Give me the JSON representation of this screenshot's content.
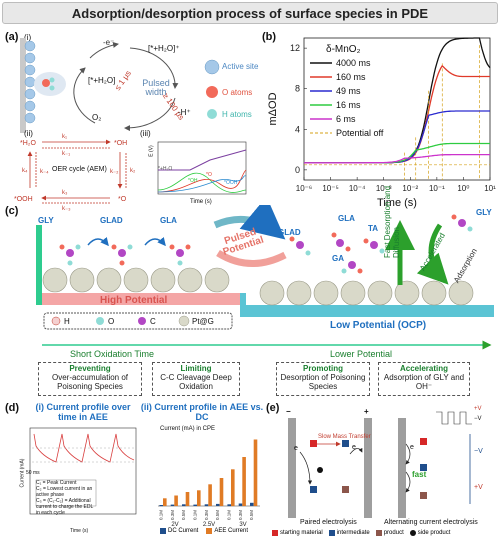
{
  "title": "Adsorption/desorption process of surface species in PDE",
  "panel_a": {
    "label": "(a)",
    "i_label": "(i)",
    "ii_label": "(ii)",
    "iii_label": "(iii)",
    "pulsed_width": "Pulsed width",
    "le1": "≤ 1 μs",
    "ge100": "≥ 100 μs",
    "h2o_top": "[*+H₂O]⁺",
    "h2o_left": "[*+H₂O]",
    "e_minus": "-e⁻",
    "h_minus": "-H⁺",
    "o2": "O₂",
    "legend": [
      "Active site",
      "O atoms",
      "H atoms"
    ],
    "oer": "OER cycle (AEM)",
    "cycle_nodes": [
      "*H₂O",
      "*OH",
      "*OOH",
      "*O"
    ],
    "k_labels": [
      "k₁",
      "k₋₁",
      "k₂",
      "k₋₂",
      "k₃",
      "k₋₃",
      "k₄",
      "k₋₄"
    ],
    "iii_ylabel": "E (V)",
    "iii_xlabel": "Time (s)",
    "iii_species": [
      "*+H₂O",
      "*OH",
      "*O",
      "*OOH"
    ]
  },
  "panel_b": {
    "label": "(b)",
    "chart_data": {
      "type": "line",
      "title": "δ-MnO₂",
      "xlabel": "Time (s)",
      "ylabel": "mΔOD",
      "xscale": "log",
      "xlim": [
        1e-06,
        10
      ],
      "ylim": [
        -1,
        13
      ],
      "yticks": [
        0,
        4,
        8,
        12
      ],
      "xticks": [
        "10⁻⁶",
        "10⁻⁵",
        "10⁻⁴",
        "10⁻³",
        "10⁻²",
        "10⁻¹",
        "10⁰",
        "10¹"
      ],
      "series": [
        {
          "name": "4000 ms",
          "color": "#111111",
          "rise": 0.05,
          "peak": 12.3,
          "off": 4.0,
          "final": 9.8
        },
        {
          "name": "160 ms",
          "color": "#e03a2a",
          "rise": 0.05,
          "peak": 10.5,
          "off": 0.16,
          "final": 9.2
        },
        {
          "name": "49 ms",
          "color": "#2a2acf",
          "rise": 0.04,
          "peak": 7.8,
          "off": 0.049,
          "final": 5.8
        },
        {
          "name": "16 ms",
          "color": "#2ecc40",
          "rise": 0.02,
          "peak": 3.2,
          "off": 0.016,
          "final": 2.6
        },
        {
          "name": "6 ms",
          "color": "#cc33cc",
          "rise": 0.01,
          "peak": 1.7,
          "off": 0.006,
          "final": 1.5
        }
      ],
      "potential_off_label": "Potential off",
      "legend_position": "top-left"
    }
  },
  "panel_c": {
    "label": "(c)",
    "molecules_left": [
      "GLY",
      "GLAD",
      "GLA"
    ],
    "molecules_right": [
      "GLAD",
      "GLA",
      "TA",
      "GA",
      "GLY"
    ],
    "pulsed_potential": "Pulsed Potential",
    "fast_desorption": "Fast Desorption and Diffusion",
    "accelerated": "Accelerated",
    "adsorption": "Adsorption",
    "high_potential": "High Potential",
    "low_potential": "Low Potential (OCP)",
    "element_legend": [
      "H",
      "O",
      "C",
      "Pt@G"
    ],
    "short_ox": "Short Oxidation Time",
    "lower_pot": "Lower Potential",
    "boxes": [
      {
        "head": "Preventing",
        "body": "Over-accumulation of Poisoning Species"
      },
      {
        "head": "Limiting",
        "body": "C-C Cleavage Deep Oxidation"
      },
      {
        "head": "Promoting",
        "body": "Desorption of Poisoning Species"
      },
      {
        "head": "Accelerating",
        "body": "Adsorption of GLY and OH⁻"
      }
    ]
  },
  "panel_d": {
    "label": "(d)",
    "i_title": "(i) Current profile over time in AEE",
    "ii_title": "(ii) Current profile in AEE vs. DC",
    "ii_ylabel": "Current (mA) in CPE",
    "i_xlabel": "Time (s)",
    "i_ylabel": "Current (mA)",
    "i_notes": [
      "C₁ = Peak Current",
      "C₂ = Lowest current in an active phase",
      "C₃ = (C₁-C₂) = Additional current to charge the EDL in each cycle"
    ],
    "i_width": "50 ms",
    "legend": [
      "DC Current",
      "AEE Current"
    ],
    "groups": [
      "2V",
      "2.5V",
      "3V"
    ],
    "bar_labels": [
      "0.1M",
      "0.3M",
      "0.5M"
    ],
    "chart_data": {
      "type": "bar",
      "categories": [
        "2V 0.1M",
        "2V 0.3M",
        "2V 0.5M",
        "2.5V 0.1M",
        "2.5V 0.3M",
        "2.5V 0.5M",
        "3V 0.1M",
        "3V 0.3M",
        "3V 0.5M"
      ],
      "series": [
        {
          "name": "DC Current",
          "color": "#1f4e8c",
          "values": [
            0.3,
            0.4,
            0.5,
            0.4,
            0.5,
            0.6,
            0.5,
            0.7,
            0.9
          ]
        },
        {
          "name": "AEE Current",
          "color": "#e07b25",
          "values": [
            2.2,
            3.0,
            4.0,
            4.5,
            6.2,
            8.0,
            10.5,
            14.0,
            19.0
          ]
        }
      ]
    }
  },
  "panel_e": {
    "label": "(e)",
    "slow": "Slow Mass Transfer",
    "fast": "fast",
    "paired": "Paired electrolysis",
    "alternating": "Alternating current electrolysis",
    "minus": "−",
    "plus": "+",
    "v_plus": "+V",
    "v_minus": "−V",
    "e_label": "e",
    "legend": [
      "starting material",
      "intermediate",
      "product",
      "side product"
    ],
    "colors": {
      "starting": "#d62728",
      "intermediate": "#1f4e8c",
      "product": "#8c564b",
      "side": "#111111"
    }
  }
}
